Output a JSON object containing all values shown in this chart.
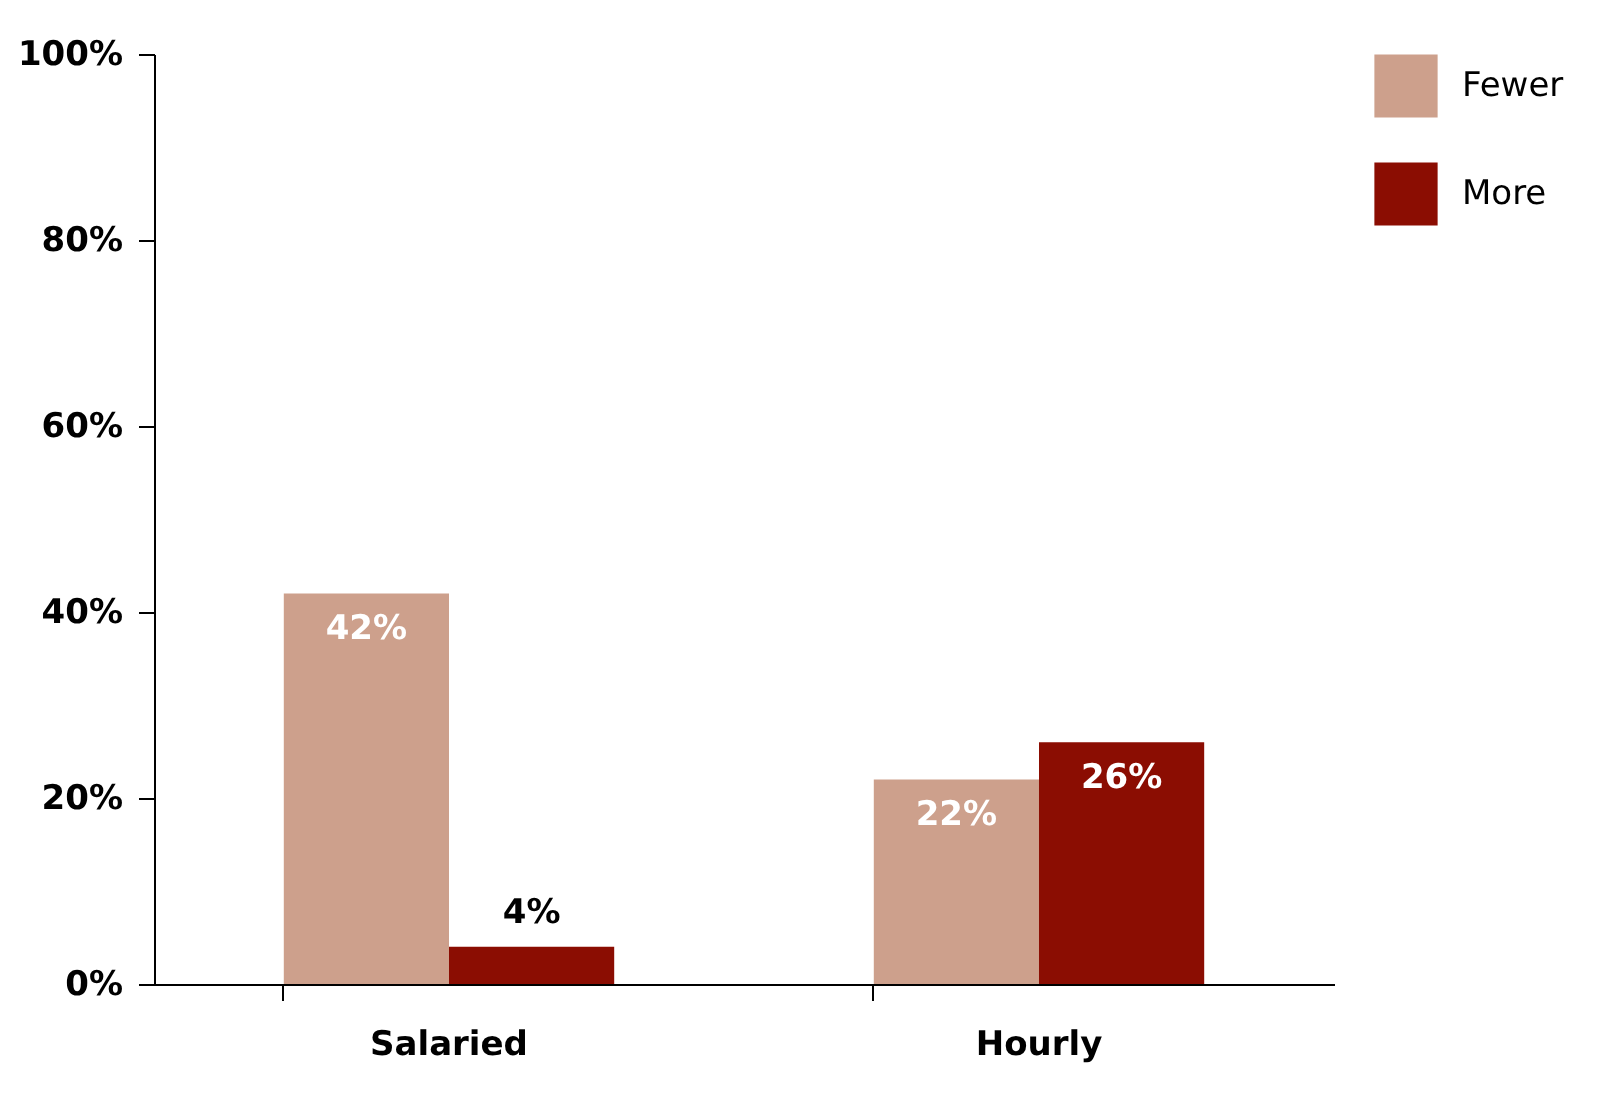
{
  "chart_data": {
    "type": "bar",
    "categories": [
      "Salaried",
      "Hourly"
    ],
    "series": [
      {
        "name": "Fewer",
        "color": "#cda08c",
        "values": [
          42,
          22
        ],
        "value_labels": [
          "42%",
          "22%"
        ]
      },
      {
        "name": "More",
        "color": "#8b0d02",
        "values": [
          4,
          26
        ],
        "value_labels": [
          "4%",
          "26%"
        ]
      }
    ],
    "ylim": [
      0,
      100
    ],
    "yticks": [
      {
        "value": 0,
        "label": "0%"
      },
      {
        "value": 20,
        "label": "20%"
      },
      {
        "value": 40,
        "label": "40%"
      },
      {
        "value": 60,
        "label": "60%"
      },
      {
        "value": 80,
        "label": "80%"
      },
      {
        "value": 100,
        "label": "100%"
      }
    ],
    "grid": false,
    "legend": "top right"
  }
}
